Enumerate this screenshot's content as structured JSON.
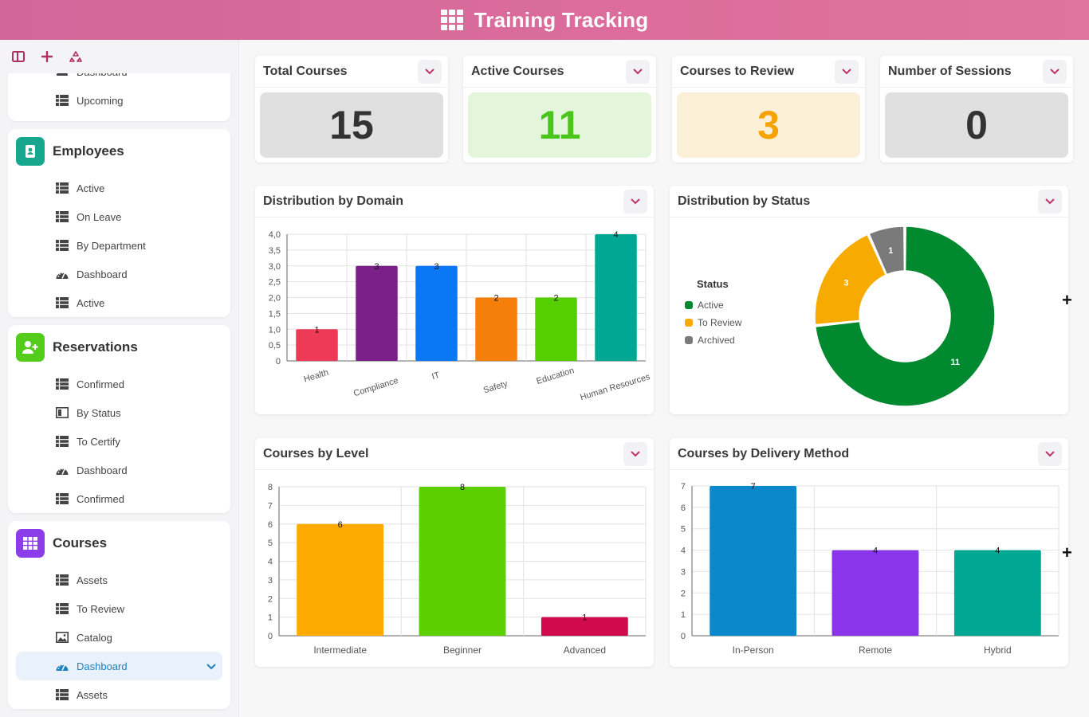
{
  "app": {
    "title": "Training Tracking"
  },
  "sidebar": {
    "top_items": [
      {
        "label": "Dashboard",
        "icon": "dashboard-icon"
      },
      {
        "label": "Upcoming",
        "icon": "table-icon"
      }
    ],
    "sections": [
      {
        "title": "Employees",
        "color": "#17a78e",
        "icon": "id-badge-icon",
        "items": [
          {
            "label": "Active",
            "icon": "table-icon"
          },
          {
            "label": "On Leave",
            "icon": "table-icon"
          },
          {
            "label": "By Department",
            "icon": "table-icon"
          },
          {
            "label": "Dashboard",
            "icon": "dashboard-icon"
          },
          {
            "label": "Active",
            "icon": "table-icon"
          }
        ]
      },
      {
        "title": "Reservations",
        "color": "#54cc1a",
        "icon": "user-plus-icon",
        "items": [
          {
            "label": "Confirmed",
            "icon": "table-icon"
          },
          {
            "label": "By Status",
            "icon": "kanban-icon"
          },
          {
            "label": "To Certify",
            "icon": "table-icon"
          },
          {
            "label": "Dashboard",
            "icon": "dashboard-icon"
          },
          {
            "label": "Confirmed",
            "icon": "table-icon"
          }
        ]
      },
      {
        "title": "Courses",
        "color": "#8a3de8",
        "icon": "grid-icon",
        "items": [
          {
            "label": "Assets",
            "icon": "table-icon"
          },
          {
            "label": "To Review",
            "icon": "table-icon"
          },
          {
            "label": "Catalog",
            "icon": "gallery-icon"
          },
          {
            "label": "Dashboard",
            "icon": "dashboard-icon",
            "selected": true
          },
          {
            "label": "Assets",
            "icon": "table-icon"
          }
        ]
      }
    ]
  },
  "kpis": [
    {
      "title": "Total Courses",
      "value": "15",
      "bg": "#e0e0e0",
      "color": "#333333"
    },
    {
      "title": "Active Courses",
      "value": "11",
      "bg": "#e3f6dc",
      "color": "#4cc51a"
    },
    {
      "title": "Courses to Review",
      "value": "3",
      "bg": "#fbefd8",
      "color": "#f5a300"
    },
    {
      "title": "Number of Sessions",
      "value": "0",
      "bg": "#e0e0e0",
      "color": "#333333"
    }
  ],
  "panels": {
    "domain": {
      "title": "Distribution by Domain"
    },
    "status": {
      "title": "Distribution by Status"
    },
    "level": {
      "title": "Courses by Level"
    },
    "delivery": {
      "title": "Courses by Delivery Method"
    }
  },
  "chart_data": [
    {
      "type": "bar",
      "title": "Distribution by Domain",
      "categories": [
        "Health",
        "Compliance",
        "IT",
        "Safety",
        "Education",
        "Human Resources"
      ],
      "values": [
        1,
        3,
        3,
        2,
        2,
        4
      ],
      "colors": [
        "#ee3a57",
        "#7a2088",
        "#0a78f5",
        "#f67f0b",
        "#55cf00",
        "#00a894"
      ],
      "ylim": [
        0,
        4
      ],
      "yticks": [
        "0",
        "0,5",
        "1,0",
        "1,5",
        "2,0",
        "2,5",
        "3,0",
        "3,5",
        "4,0"
      ],
      "grid": true
    },
    {
      "type": "pie",
      "title": "Distribution by Status",
      "legend_title": "Status",
      "categories": [
        "Active",
        "To Review",
        "Archived"
      ],
      "values": [
        11,
        3,
        1
      ],
      "colors": [
        "#00892f",
        "#f7ab00",
        "#7a7a7a"
      ],
      "legend": "left"
    },
    {
      "type": "bar",
      "title": "Courses by Level",
      "categories": [
        "Intermediate",
        "Beginner",
        "Advanced"
      ],
      "values": [
        6,
        8,
        1
      ],
      "colors": [
        "#ffaa00",
        "#5ccf00",
        "#d10a4d"
      ],
      "ylim": [
        0,
        8
      ],
      "grid": true
    },
    {
      "type": "bar",
      "title": "Courses by Delivery Method",
      "categories": [
        "In-Person",
        "Remote",
        "Hybrid"
      ],
      "values": [
        7,
        4,
        4
      ],
      "colors": [
        "#0a88cc",
        "#8a35ea",
        "#00a894"
      ],
      "ylim": [
        0,
        7
      ],
      "grid": true
    }
  ]
}
